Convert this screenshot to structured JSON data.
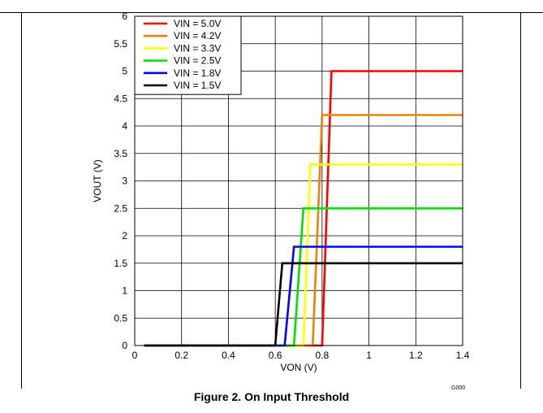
{
  "figure": {
    "caption": "Figure 2. On Input Threshold",
    "graph_code": "G000"
  },
  "chart_data": {
    "type": "line",
    "title": "",
    "xlabel": "VON (V)",
    "ylabel": "VOUT (V)",
    "xlim": [
      0,
      1.4
    ],
    "ylim": [
      0,
      6
    ],
    "x_ticks": [
      "0",
      "0.2",
      "0.4",
      "0.6",
      "0.8",
      "1",
      "1.2",
      "1.4"
    ],
    "y_ticks": [
      "0",
      "0.5",
      "1",
      "1.5",
      "2",
      "2.5",
      "3",
      "3.5",
      "4",
      "4.5",
      "5",
      "5.5",
      "6"
    ],
    "grid": true,
    "legend_position": "top-left",
    "series": [
      {
        "name": "VIN = 5.0V",
        "color": "#ff0000",
        "x": [
          0.04,
          0.8,
          0.84,
          1.4
        ],
        "y": [
          0,
          0,
          5.0,
          5.0
        ]
      },
      {
        "name": "VIN = 4.2V",
        "color": "#f08000",
        "x": [
          0.04,
          0.76,
          0.8,
          1.4
        ],
        "y": [
          0,
          0,
          4.2,
          4.2
        ]
      },
      {
        "name": "VIN = 3.3V",
        "color": "#ffff00",
        "x": [
          0.04,
          0.72,
          0.75,
          1.4
        ],
        "y": [
          0,
          0,
          3.3,
          3.3
        ]
      },
      {
        "name": "VIN = 2.5V",
        "color": "#00e000",
        "x": [
          0.04,
          0.68,
          0.72,
          1.4
        ],
        "y": [
          0,
          0,
          2.5,
          2.5
        ]
      },
      {
        "name": "VIN = 1.8V",
        "color": "#0000ff",
        "x": [
          0.04,
          0.64,
          0.68,
          1.4
        ],
        "y": [
          0,
          0,
          1.8,
          1.8
        ]
      },
      {
        "name": "VIN = 1.5V",
        "color": "#000000",
        "x": [
          0.04,
          0.6,
          0.63,
          1.4
        ],
        "y": [
          0,
          0,
          1.5,
          1.5
        ]
      }
    ]
  }
}
